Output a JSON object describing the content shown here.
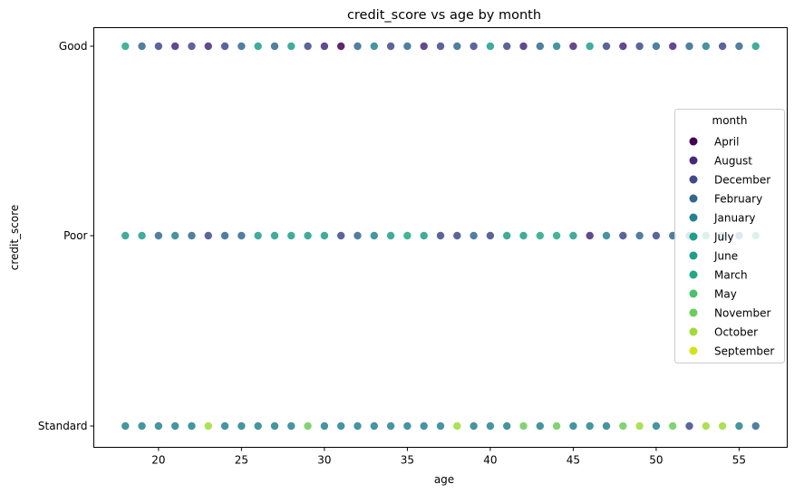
{
  "chart_data": {
    "type": "scatter",
    "title": "credit_score vs age by month",
    "xlabel": "age",
    "ylabel": "credit_score",
    "xlim": [
      16.1,
      57.9
    ],
    "x_ticks": [
      20,
      25,
      30,
      35,
      40,
      45,
      50,
      55
    ],
    "y_categories": [
      "Good",
      "Poor",
      "Standard"
    ],
    "legend": {
      "title": "month",
      "placement": "center-right"
    },
    "series": [
      {
        "name": "April",
        "color": "#440154"
      },
      {
        "name": "August",
        "color": "#482979"
      },
      {
        "name": "December",
        "color": "#3e4a89"
      },
      {
        "name": "February",
        "color": "#31688e"
      },
      {
        "name": "January",
        "color": "#26828e"
      },
      {
        "name": "July",
        "color": "#1f9e89"
      },
      {
        "name": "June",
        "color": "#1f9e89"
      },
      {
        "name": "March",
        "color": "#23a884"
      },
      {
        "name": "May",
        "color": "#4ac16d"
      },
      {
        "name": "November",
        "color": "#6ccd5a"
      },
      {
        "name": "October",
        "color": "#a0da39"
      },
      {
        "name": "September",
        "color": "#d2e21b"
      }
    ],
    "points": [
      {
        "y": "Good",
        "x": 18,
        "month": "March"
      },
      {
        "y": "Good",
        "x": 19,
        "month": "February"
      },
      {
        "y": "Good",
        "x": 20,
        "month": "December"
      },
      {
        "y": "Good",
        "x": 21,
        "month": "August"
      },
      {
        "y": "Good",
        "x": 22,
        "month": "December"
      },
      {
        "y": "Good",
        "x": 23,
        "month": "August"
      },
      {
        "y": "Good",
        "x": 24,
        "month": "December"
      },
      {
        "y": "Good",
        "x": 25,
        "month": "February"
      },
      {
        "y": "Good",
        "x": 26,
        "month": "June"
      },
      {
        "y": "Good",
        "x": 27,
        "month": "February"
      },
      {
        "y": "Good",
        "x": 28,
        "month": "June"
      },
      {
        "y": "Good",
        "x": 29,
        "month": "December"
      },
      {
        "y": "Good",
        "x": 30,
        "month": "August"
      },
      {
        "y": "Good",
        "x": 31,
        "month": "April"
      },
      {
        "y": "Good",
        "x": 32,
        "month": "February"
      },
      {
        "y": "Good",
        "x": 33,
        "month": "January"
      },
      {
        "y": "Good",
        "x": 34,
        "month": "December"
      },
      {
        "y": "Good",
        "x": 35,
        "month": "February"
      },
      {
        "y": "Good",
        "x": 36,
        "month": "August"
      },
      {
        "y": "Good",
        "x": 37,
        "month": "December"
      },
      {
        "y": "Good",
        "x": 38,
        "month": "February"
      },
      {
        "y": "Good",
        "x": 39,
        "month": "December"
      },
      {
        "y": "Good",
        "x": 40,
        "month": "June"
      },
      {
        "y": "Good",
        "x": 41,
        "month": "December"
      },
      {
        "y": "Good",
        "x": 42,
        "month": "August"
      },
      {
        "y": "Good",
        "x": 43,
        "month": "February"
      },
      {
        "y": "Good",
        "x": 44,
        "month": "January"
      },
      {
        "y": "Good",
        "x": 45,
        "month": "August"
      },
      {
        "y": "Good",
        "x": 46,
        "month": "June"
      },
      {
        "y": "Good",
        "x": 47,
        "month": "December"
      },
      {
        "y": "Good",
        "x": 48,
        "month": "August"
      },
      {
        "y": "Good",
        "x": 49,
        "month": "December"
      },
      {
        "y": "Good",
        "x": 50,
        "month": "February"
      },
      {
        "y": "Good",
        "x": 51,
        "month": "August"
      },
      {
        "y": "Good",
        "x": 52,
        "month": "February"
      },
      {
        "y": "Good",
        "x": 53,
        "month": "January"
      },
      {
        "y": "Good",
        "x": 54,
        "month": "December"
      },
      {
        "y": "Good",
        "x": 55,
        "month": "February"
      },
      {
        "y": "Good",
        "x": 56,
        "month": "June"
      },
      {
        "y": "Poor",
        "x": 18,
        "month": "June"
      },
      {
        "y": "Poor",
        "x": 19,
        "month": "June"
      },
      {
        "y": "Poor",
        "x": 20,
        "month": "February"
      },
      {
        "y": "Poor",
        "x": 21,
        "month": "January"
      },
      {
        "y": "Poor",
        "x": 22,
        "month": "February"
      },
      {
        "y": "Poor",
        "x": 23,
        "month": "December"
      },
      {
        "y": "Poor",
        "x": 24,
        "month": "February"
      },
      {
        "y": "Poor",
        "x": 25,
        "month": "February"
      },
      {
        "y": "Poor",
        "x": 26,
        "month": "June"
      },
      {
        "y": "Poor",
        "x": 27,
        "month": "June"
      },
      {
        "y": "Poor",
        "x": 28,
        "month": "June"
      },
      {
        "y": "Poor",
        "x": 29,
        "month": "June"
      },
      {
        "y": "Poor",
        "x": 30,
        "month": "June"
      },
      {
        "y": "Poor",
        "x": 31,
        "month": "December"
      },
      {
        "y": "Poor",
        "x": 32,
        "month": "February"
      },
      {
        "y": "Poor",
        "x": 33,
        "month": "January"
      },
      {
        "y": "Poor",
        "x": 34,
        "month": "June"
      },
      {
        "y": "Poor",
        "x": 35,
        "month": "March"
      },
      {
        "y": "Poor",
        "x": 36,
        "month": "June"
      },
      {
        "y": "Poor",
        "x": 37,
        "month": "December"
      },
      {
        "y": "Poor",
        "x": 38,
        "month": "December"
      },
      {
        "y": "Poor",
        "x": 39,
        "month": "February"
      },
      {
        "y": "Poor",
        "x": 40,
        "month": "December"
      },
      {
        "y": "Poor",
        "x": 41,
        "month": "June"
      },
      {
        "y": "Poor",
        "x": 42,
        "month": "June"
      },
      {
        "y": "Poor",
        "x": 43,
        "month": "March"
      },
      {
        "y": "Poor",
        "x": 44,
        "month": "March"
      },
      {
        "y": "Poor",
        "x": 45,
        "month": "June"
      },
      {
        "y": "Poor",
        "x": 46,
        "month": "August"
      },
      {
        "y": "Poor",
        "x": 47,
        "month": "January"
      },
      {
        "y": "Poor",
        "x": 48,
        "month": "December"
      },
      {
        "y": "Poor",
        "x": 49,
        "month": "February"
      },
      {
        "y": "Poor",
        "x": 50,
        "month": "December"
      },
      {
        "y": "Poor",
        "x": 51,
        "month": "February"
      },
      {
        "y": "Poor",
        "x": 52,
        "month": "February"
      },
      {
        "y": "Poor",
        "x": 53,
        "month": "June"
      },
      {
        "y": "Poor",
        "x": 54,
        "month": "January"
      },
      {
        "y": "Poor",
        "x": 55,
        "month": "February"
      },
      {
        "y": "Poor",
        "x": 56,
        "month": "June"
      },
      {
        "y": "Standard",
        "x": 18,
        "month": "January"
      },
      {
        "y": "Standard",
        "x": 19,
        "month": "January"
      },
      {
        "y": "Standard",
        "x": 20,
        "month": "January"
      },
      {
        "y": "Standard",
        "x": 21,
        "month": "January"
      },
      {
        "y": "Standard",
        "x": 22,
        "month": "January"
      },
      {
        "y": "Standard",
        "x": 23,
        "month": "October"
      },
      {
        "y": "Standard",
        "x": 24,
        "month": "January"
      },
      {
        "y": "Standard",
        "x": 25,
        "month": "January"
      },
      {
        "y": "Standard",
        "x": 26,
        "month": "January"
      },
      {
        "y": "Standard",
        "x": 27,
        "month": "January"
      },
      {
        "y": "Standard",
        "x": 28,
        "month": "January"
      },
      {
        "y": "Standard",
        "x": 29,
        "month": "November"
      },
      {
        "y": "Standard",
        "x": 30,
        "month": "January"
      },
      {
        "y": "Standard",
        "x": 31,
        "month": "January"
      },
      {
        "y": "Standard",
        "x": 32,
        "month": "January"
      },
      {
        "y": "Standard",
        "x": 33,
        "month": "January"
      },
      {
        "y": "Standard",
        "x": 34,
        "month": "January"
      },
      {
        "y": "Standard",
        "x": 35,
        "month": "January"
      },
      {
        "y": "Standard",
        "x": 36,
        "month": "January"
      },
      {
        "y": "Standard",
        "x": 37,
        "month": "January"
      },
      {
        "y": "Standard",
        "x": 38,
        "month": "October"
      },
      {
        "y": "Standard",
        "x": 39,
        "month": "January"
      },
      {
        "y": "Standard",
        "x": 40,
        "month": "January"
      },
      {
        "y": "Standard",
        "x": 41,
        "month": "January"
      },
      {
        "y": "Standard",
        "x": 42,
        "month": "November"
      },
      {
        "y": "Standard",
        "x": 43,
        "month": "January"
      },
      {
        "y": "Standard",
        "x": 44,
        "month": "November"
      },
      {
        "y": "Standard",
        "x": 45,
        "month": "January"
      },
      {
        "y": "Standard",
        "x": 46,
        "month": "January"
      },
      {
        "y": "Standard",
        "x": 47,
        "month": "January"
      },
      {
        "y": "Standard",
        "x": 48,
        "month": "November"
      },
      {
        "y": "Standard",
        "x": 49,
        "month": "October"
      },
      {
        "y": "Standard",
        "x": 50,
        "month": "January"
      },
      {
        "y": "Standard",
        "x": 51,
        "month": "November"
      },
      {
        "y": "Standard",
        "x": 52,
        "month": "December"
      },
      {
        "y": "Standard",
        "x": 53,
        "month": "October"
      },
      {
        "y": "Standard",
        "x": 54,
        "month": "October"
      },
      {
        "y": "Standard",
        "x": 55,
        "month": "January"
      },
      {
        "y": "Standard",
        "x": 56,
        "month": "February"
      }
    ]
  }
}
